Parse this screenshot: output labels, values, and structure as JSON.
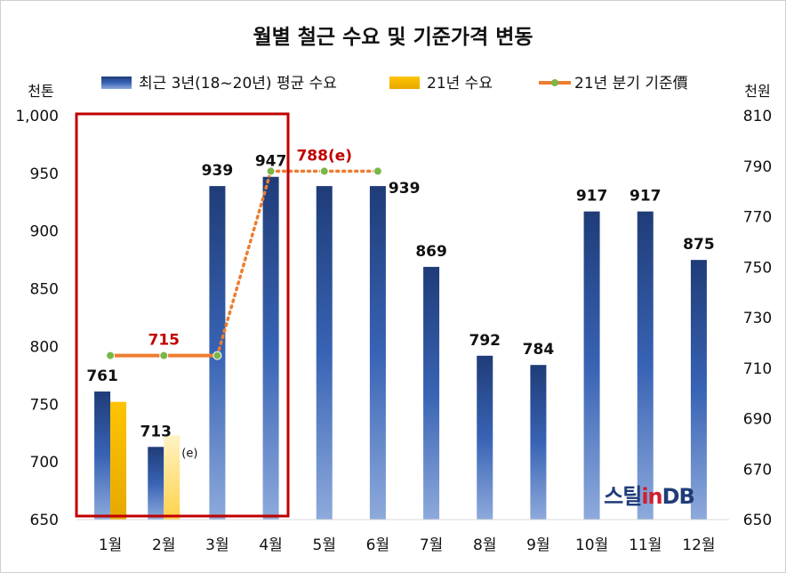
{
  "chart_data": {
    "type": "bar",
    "title": "월별 철근 수요 및 기준가격 변동",
    "left_unit": "천톤",
    "right_unit": "천원",
    "categories": [
      "1월",
      "2월",
      "3월",
      "4월",
      "5월",
      "6월",
      "7월",
      "8월",
      "9월",
      "10월",
      "11월",
      "12월"
    ],
    "ylim": [
      650,
      1000
    ],
    "y_ticks": [
      "650",
      "700",
      "750",
      "800",
      "850",
      "900",
      "950",
      "1,000"
    ],
    "y2lim": [
      650,
      810
    ],
    "y2_ticks": [
      "650",
      "670",
      "690",
      "710",
      "730",
      "750",
      "770",
      "790",
      "810"
    ],
    "legend_position": "top",
    "grid": false,
    "series": [
      {
        "name": "최근 3년(18~20년) 평균 수요",
        "kind": "bar",
        "color": "#2f5597",
        "values": [
          761,
          713,
          939,
          947,
          939,
          939,
          869,
          792,
          784,
          917,
          917,
          875
        ],
        "labels": [
          "761",
          "713",
          "939",
          "947",
          "",
          "939",
          "869",
          "792",
          "784",
          "917",
          "917",
          "875"
        ]
      },
      {
        "name": "21년 수요",
        "kind": "bar",
        "color": "#ffc000",
        "values": [
          752,
          723,
          null,
          null,
          null,
          null,
          null,
          null,
          null,
          null,
          null,
          null
        ],
        "annotation": "(e)"
      },
      {
        "name": "21년 분기 기준價",
        "kind": "line",
        "axis": "right",
        "color": "#ed7d31",
        "values": [
          715,
          715,
          715,
          788,
          788,
          788,
          null,
          null,
          null,
          null,
          null,
          null
        ],
        "annotations": [
          {
            "text": "715",
            "at": 1
          },
          {
            "text": "788(e)",
            "at": 4
          }
        ]
      }
    ],
    "highlight_range": [
      "1월",
      "4월"
    ],
    "watermark": "스틸in DB"
  }
}
